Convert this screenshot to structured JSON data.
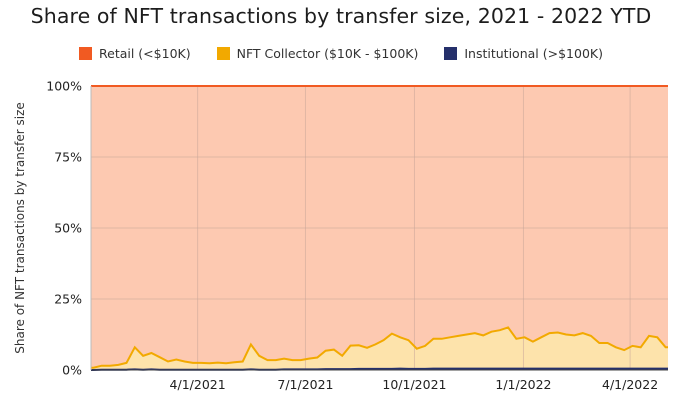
{
  "title": "Share of NFT transactions by transfer size, 2021 - 2022 YTD",
  "legend": [
    {
      "label": "Retail (<$10K)",
      "color": "#f15a22"
    },
    {
      "label": "NFT Collector ($10K - $100K)",
      "color": "#f2a900"
    },
    {
      "label": "Institutional (>$100K)",
      "color": "#25306b"
    }
  ],
  "chart_data": {
    "type": "area",
    "stacked": true,
    "percent": true,
    "title": "Share of NFT transactions by transfer size, 2021 - 2022 YTD",
    "xlabel": "",
    "ylabel": "Share of NFT transactions by transfer size",
    "ylim": [
      0,
      100
    ],
    "ytick_labels": [
      "0%",
      "25%",
      "50%",
      "75%",
      "100%"
    ],
    "ytick_values": [
      0,
      25,
      50,
      75,
      100
    ],
    "xtick_labels": [
      "4/1/2021",
      "7/1/2021",
      "10/1/2021",
      "1/1/2022",
      "4/1/2022"
    ],
    "xtick_dates": [
      "2021-04-01",
      "2021-07-01",
      "2021-10-01",
      "2022-01-01",
      "2022-04-01"
    ],
    "grid": true,
    "legend_position": "top",
    "x": [
      "2021-01-03",
      "2021-01-10",
      "2021-01-17",
      "2021-01-24",
      "2021-01-31",
      "2021-02-07",
      "2021-02-14",
      "2021-02-21",
      "2021-02-28",
      "2021-03-07",
      "2021-03-14",
      "2021-03-21",
      "2021-03-28",
      "2021-04-04",
      "2021-04-11",
      "2021-04-18",
      "2021-04-25",
      "2021-05-02",
      "2021-05-09",
      "2021-05-16",
      "2021-05-23",
      "2021-05-30",
      "2021-06-06",
      "2021-06-13",
      "2021-06-20",
      "2021-06-27",
      "2021-07-04",
      "2021-07-11",
      "2021-07-18",
      "2021-07-25",
      "2021-08-01",
      "2021-08-08",
      "2021-08-15",
      "2021-08-22",
      "2021-08-29",
      "2021-09-05",
      "2021-09-12",
      "2021-09-19",
      "2021-09-26",
      "2021-10-03",
      "2021-10-10",
      "2021-10-17",
      "2021-10-24",
      "2021-10-31",
      "2021-11-07",
      "2021-11-14",
      "2021-11-21",
      "2021-11-28",
      "2021-12-05",
      "2021-12-12",
      "2021-12-19",
      "2021-12-26",
      "2022-01-02",
      "2022-01-09",
      "2022-01-16",
      "2022-01-23",
      "2022-01-30",
      "2022-02-06",
      "2022-02-13",
      "2022-02-20",
      "2022-02-27",
      "2022-03-06",
      "2022-03-13",
      "2022-03-20",
      "2022-03-27",
      "2022-04-03",
      "2022-04-10",
      "2022-04-17",
      "2022-04-24",
      "2022-05-01"
    ],
    "series": [
      {
        "name": "Retail (<$10K)",
        "color": "#f15a22",
        "fill": "#fdc9b1",
        "values": [
          99.2,
          98.5,
          98.5,
          98.2,
          97.5,
          92.0,
          95.0,
          94.0,
          95.5,
          97.0,
          96.3,
          97.0,
          97.5,
          97.5,
          97.6,
          97.4,
          97.6,
          97.3,
          97.0,
          91.0,
          95.0,
          96.5,
          96.5,
          96.0,
          96.5,
          96.5,
          96.0,
          95.6,
          93.2,
          92.8,
          95.0,
          91.4,
          91.3,
          92.2,
          91.0,
          89.5,
          87.2,
          88.5,
          89.5,
          92.5,
          91.5,
          89.0,
          89.0,
          88.5,
          88.0,
          87.5,
          87.0,
          87.8,
          86.5,
          86.0,
          85.0,
          89.0,
          88.5,
          90.0,
          88.5,
          87.0,
          86.8,
          87.5,
          87.8,
          87.0,
          88.0,
          90.5,
          90.5,
          92.0,
          93.0,
          91.5,
          92.0,
          88.0,
          88.5,
          92.0
        ]
      },
      {
        "name": "NFT Collector ($10K - $100K)",
        "color": "#f2a900",
        "fill": "#fde3ab",
        "values": [
          0.8,
          1.4,
          1.4,
          1.7,
          2.4,
          7.8,
          4.9,
          5.8,
          4.4,
          2.9,
          3.6,
          2.9,
          2.4,
          2.4,
          2.3,
          2.5,
          2.3,
          2.6,
          2.9,
          8.8,
          4.9,
          3.4,
          3.4,
          3.8,
          3.3,
          3.3,
          3.8,
          4.2,
          6.5,
          6.9,
          4.7,
          8.3,
          8.3,
          7.4,
          8.6,
          10.1,
          12.4,
          11.0,
          10.1,
          7.1,
          8.1,
          10.5,
          10.5,
          11.0,
          11.5,
          12.0,
          12.5,
          11.7,
          13.0,
          13.5,
          14.5,
          10.5,
          11.0,
          9.5,
          11.0,
          12.5,
          12.7,
          12.0,
          11.7,
          12.5,
          11.5,
          9.0,
          9.0,
          7.5,
          6.5,
          8.0,
          7.5,
          11.5,
          11.0,
          7.5
        ]
      },
      {
        "name": "Institutional (>$100K)",
        "color": "#25306b",
        "fill": "#25306b",
        "values": [
          0.0,
          0.1,
          0.1,
          0.1,
          0.1,
          0.2,
          0.1,
          0.2,
          0.1,
          0.1,
          0.1,
          0.1,
          0.1,
          0.1,
          0.1,
          0.1,
          0.1,
          0.1,
          0.1,
          0.2,
          0.1,
          0.1,
          0.1,
          0.2,
          0.2,
          0.2,
          0.2,
          0.2,
          0.3,
          0.3,
          0.3,
          0.3,
          0.4,
          0.4,
          0.4,
          0.4,
          0.4,
          0.5,
          0.4,
          0.4,
          0.4,
          0.5,
          0.5,
          0.5,
          0.5,
          0.5,
          0.5,
          0.5,
          0.5,
          0.5,
          0.5,
          0.5,
          0.5,
          0.5,
          0.5,
          0.5,
          0.5,
          0.5,
          0.5,
          0.5,
          0.5,
          0.5,
          0.5,
          0.5,
          0.5,
          0.5,
          0.5,
          0.5,
          0.5,
          0.5
        ]
      }
    ]
  }
}
